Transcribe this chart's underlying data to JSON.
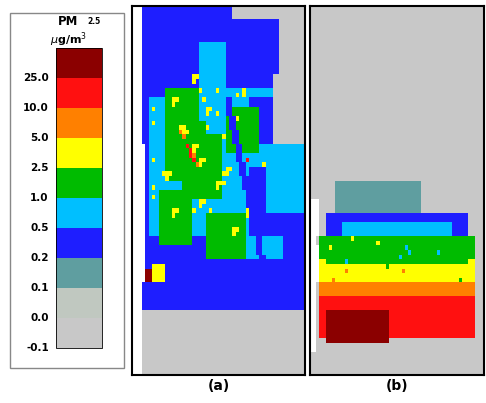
{
  "colorbar_colors_bottom_to_top": [
    "#c8c8c8",
    "#c0c8c0",
    "#5f9ea0",
    "#1e1eff",
    "#00bfff",
    "#00bb00",
    "#ffff00",
    "#ff8000",
    "#ff1010",
    "#8b0000"
  ],
  "colorbar_boundaries": [
    -0.1,
    0.0,
    0.1,
    0.2,
    0.5,
    1.0,
    2.5,
    5.0,
    10.0,
    25.0,
    40.0
  ],
  "label_values": [
    "25.0",
    "10.0",
    "5.0",
    "2.5",
    "1.0",
    "0.5",
    "0.2",
    "0.1",
    "0.0",
    "-0.1"
  ],
  "panel_a_label": "(a)",
  "panel_b_label": "(b)",
  "background_color": "#ffffff",
  "figsize": [
    4.86,
    4.03
  ],
  "dpi": 100,
  "color_map": {
    "0": "#ffffff",
    "1": "#c8c8c8",
    "2": "#c0c8c0",
    "3": "#5f9ea0",
    "4": "#1e1eff",
    "5": "#00bfff",
    "6": "#00bb00",
    "7": "#ffff00",
    "8": "#ff8000",
    "9": "#ff1010",
    "10": "#8b0000",
    "11": "#333333",
    "12": "#aaaaaa"
  }
}
